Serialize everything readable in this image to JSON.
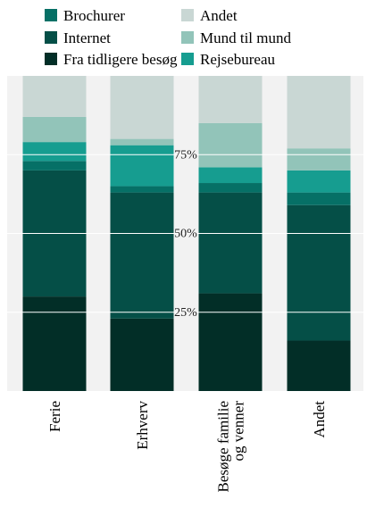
{
  "chart_data": {
    "type": "bar",
    "stacked": true,
    "normalized": true,
    "categories": [
      "Ferie",
      "Erhverv",
      "Besøge familie og venner",
      "Andet"
    ],
    "category_lines": [
      [
        "Ferie"
      ],
      [
        "Erhverv"
      ],
      [
        "Besøge familie",
        "og venner"
      ],
      [
        "Andet"
      ]
    ],
    "series": [
      {
        "name": "Fra tidligere besøg",
        "color": "#022e27",
        "values": [
          30,
          23,
          31,
          16
        ]
      },
      {
        "name": "Internet",
        "color": "#054f47",
        "values": [
          40,
          40,
          32,
          43
        ]
      },
      {
        "name": "Brochurer",
        "color": "#067066",
        "values": [
          3,
          2,
          3,
          4
        ]
      },
      {
        "name": "Rejsebureau",
        "color": "#169d90",
        "values": [
          6,
          13,
          5,
          7
        ]
      },
      {
        "name": "Mund til mund",
        "color": "#92c4b9",
        "values": [
          8,
          2,
          14,
          7
        ]
      },
      {
        "name": "Andet",
        "color": "#c9d7d4",
        "values": [
          13,
          20,
          15,
          23
        ]
      }
    ],
    "legend": {
      "placement": "top",
      "columns": [
        [
          "Brochurer",
          "Internet",
          "Fra tidligere besøg"
        ],
        [
          "Andet",
          "Mund til mund",
          "Rejsebureau"
        ]
      ]
    },
    "yticks": [
      {
        "value": 25,
        "label": "25%"
      },
      {
        "value": 50,
        "label": "50%"
      },
      {
        "value": 75,
        "label": "75%"
      }
    ],
    "ylim": [
      0,
      100
    ],
    "grid": true,
    "background": "#f2f2f2",
    "gridline_color": "#ffffff"
  }
}
